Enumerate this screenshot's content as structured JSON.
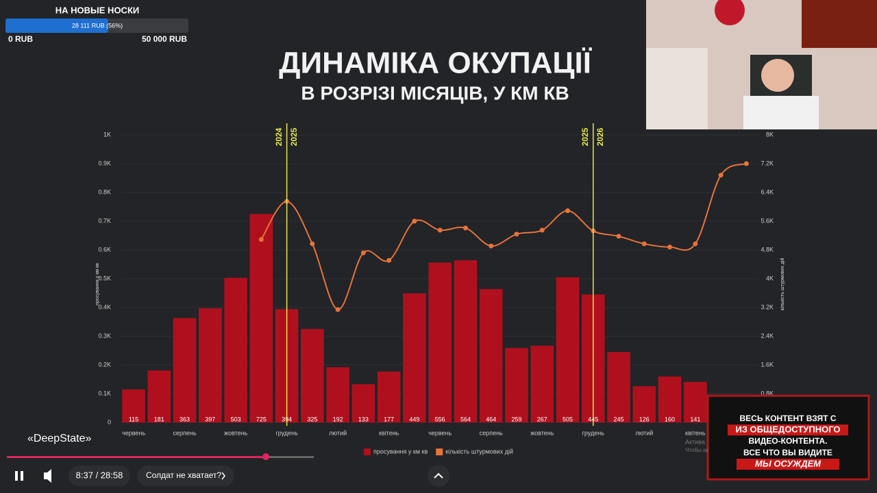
{
  "donation": {
    "title": "НА НОВЫЕ НОСКИ",
    "amount": "28 111 RUB (56%)",
    "progress": 56,
    "min": "0 RUB",
    "max": "50 000 RUB"
  },
  "chart_data": {
    "type": "combo",
    "title": "ДИНАМІКА ОКУПАЦІЇ",
    "subtitle": "В РОЗРІЗІ МІСЯЦІВ, У КМ КВ",
    "y_label": "просування у км кв",
    "y2_label": "кількість штурмових дій",
    "categories": [
      "червень",
      null,
      "серпень",
      null,
      "жовтень",
      null,
      "грудень",
      null,
      "лютий",
      null,
      "квітень",
      null,
      "червень",
      null,
      "серпень",
      null,
      "жовтень",
      null,
      "грудень",
      null,
      "лютий",
      null,
      "квітень",
      null,
      null
    ],
    "series": [
      {
        "name": "просування у км кв",
        "type": "bar",
        "color": "#b0101e",
        "values": [
          115,
          181,
          363,
          397,
          503,
          725,
          394,
          325,
          192,
          133,
          177,
          449,
          556,
          564,
          464,
          259,
          267,
          505,
          445,
          245,
          126,
          160,
          141,
          null,
          null
        ]
      },
      {
        "name": "кількість штурмових дій",
        "type": "line",
        "axis": "y2",
        "color": "#e8733a",
        "values": [
          null,
          null,
          null,
          null,
          null,
          5090,
          6150,
          4970,
          3140,
          4720,
          4510,
          5600,
          5350,
          5410,
          4910,
          5240,
          5350,
          5890,
          5330,
          5180,
          4970,
          4880,
          4970,
          6880,
          7200
        ]
      }
    ],
    "ylim": [
      0,
      1000
    ],
    "yticks": [
      0,
      {
        "value": 100,
        "label": "0.1K"
      },
      {
        "value": 200,
        "label": "0.2K"
      },
      {
        "value": 300,
        "label": "0.3K"
      },
      {
        "value": 400,
        "label": "0.4K"
      },
      {
        "value": 500,
        "label": "0.5K"
      },
      {
        "value": 600,
        "label": "0.6K"
      },
      {
        "value": 700,
        "label": "0.7K"
      },
      {
        "value": 800,
        "label": "0.8K"
      },
      {
        "value": 900,
        "label": "0.9K"
      },
      {
        "value": 1000,
        "label": "1K"
      }
    ],
    "y2lim": [
      0,
      8000
    ],
    "y2ticks": [
      0,
      {
        "value": 800,
        "label": "0.8K"
      },
      {
        "value": 1600,
        "label": "1.6K"
      },
      {
        "value": 2400,
        "label": "2.4K"
      },
      {
        "value": 3200,
        "label": "3.2K"
      },
      {
        "value": 4000,
        "label": "4K"
      },
      {
        "value": 4800,
        "label": "4.8K"
      },
      {
        "value": 5600,
        "label": "5.6K"
      },
      {
        "value": 6400,
        "label": "6.4K"
      },
      {
        "value": 7200,
        "label": "7.2K"
      },
      {
        "value": 8000,
        "label": "8K"
      }
    ],
    "grid": true,
    "dividers": [
      {
        "x": 6.5,
        "left": "2024",
        "right": "2025",
        "color": "#e6e84a"
      },
      {
        "x": 18.5,
        "left": "2025",
        "right": "2026",
        "color": "#e6e84a"
      }
    ]
  },
  "player": {
    "channel": "«DeepState»",
    "time": "8:37 / 28:58",
    "chapter": "Солдат не хватает?"
  },
  "overlay": {
    "lines": [
      "ВЕСЬ КОНТЕНТ ВЗЯТ С",
      "ИЗ ОБЩЕДОСТУПНОГО",
      "ВИДЕО-КОНТЕНТА.",
      "ВСЕ ЧТО ВЫ ВИДИТЕ",
      "МЫ ОСУЖДЕМ"
    ]
  },
  "watermark": [
    "Актива",
    "Чтобы ак"
  ]
}
